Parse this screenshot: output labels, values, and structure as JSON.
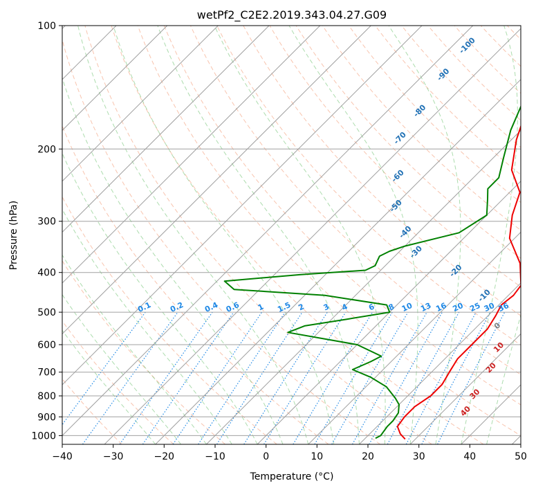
{
  "chart_data": {
    "type": "line",
    "title": "wetPf2_C2E2.2019.343.04.27.G09",
    "xlabel": "Temperature (°C)",
    "ylabel": "Pressure (hPa)",
    "xlim": [
      -40,
      50
    ],
    "ylim": [
      1050,
      100
    ],
    "y_scale": "log",
    "grid": true,
    "x_ticks": [
      -40,
      -30,
      -20,
      -10,
      0,
      10,
      20,
      30,
      40,
      50
    ],
    "y_ticks": [
      100,
      200,
      300,
      400,
      500,
      600,
      700,
      800,
      900,
      1000
    ],
    "colors": {
      "temperature": "#ee0000",
      "dewpoint": "#008000",
      "isotherm": "#a0a0a0",
      "dry_adiabat": "#f4a582",
      "moist_adiabat": "#74c476",
      "mixing_ratio": "#1e88e5",
      "theta_e_label": "#2171b5",
      "wetbulb_label": "#cc2222"
    },
    "series": [
      {
        "key": "temperature",
        "points": [
          [
            28,
            1020
          ],
          [
            26,
            990
          ],
          [
            24,
            950
          ],
          [
            23.5,
            900
          ],
          [
            23.5,
            850
          ],
          [
            24.5,
            800
          ],
          [
            24.5,
            750
          ],
          [
            23.5,
            700
          ],
          [
            22.5,
            650
          ],
          [
            22.5,
            600
          ],
          [
            22.5,
            550
          ],
          [
            21.5,
            510
          ],
          [
            20.5,
            480
          ],
          [
            21,
            455
          ],
          [
            20.5,
            430
          ],
          [
            16,
            380
          ],
          [
            9,
            330
          ],
          [
            5,
            290
          ],
          [
            2,
            255
          ],
          [
            -4,
            225
          ],
          [
            -9,
            190
          ],
          [
            -13,
            160
          ],
          [
            -16,
            140
          ],
          [
            -16.5,
            130
          ],
          [
            -16,
            120
          ],
          [
            -16,
            110
          ],
          [
            -18,
            100
          ]
        ]
      },
      {
        "key": "dewpoint",
        "points": [
          [
            22,
            1015
          ],
          [
            22.5,
            1000
          ],
          [
            22,
            950
          ],
          [
            22,
            920
          ],
          [
            21.5,
            880
          ],
          [
            20,
            840
          ],
          [
            18,
            810
          ],
          [
            14,
            760
          ],
          [
            9,
            720
          ],
          [
            4,
            690
          ],
          [
            6,
            660
          ],
          [
            7,
            640
          ],
          [
            0,
            600
          ],
          [
            -16,
            560
          ],
          [
            -14,
            540
          ],
          [
            -7,
            520
          ],
          [
            0,
            500
          ],
          [
            -2,
            480
          ],
          [
            -16,
            455
          ],
          [
            -35,
            440
          ],
          [
            -38.5,
            420
          ],
          [
            -25,
            405
          ],
          [
            -13,
            395
          ],
          [
            -12,
            385
          ],
          [
            -13,
            365
          ],
          [
            -12,
            355
          ],
          [
            -10,
            345
          ],
          [
            -2,
            320
          ],
          [
            0,
            290
          ],
          [
            -3,
            265
          ],
          [
            -5,
            250
          ],
          [
            -5,
            235
          ],
          [
            -8,
            210
          ],
          [
            -12,
            180
          ],
          [
            -15,
            155
          ],
          [
            -18,
            135
          ],
          [
            -20,
            120
          ],
          [
            -19,
            110
          ],
          [
            -20,
            100
          ]
        ]
      }
    ],
    "theta_e_labels": [
      {
        "text": "-100",
        "t": -36.5,
        "p": 113
      },
      {
        "text": "-90",
        "t": -35.5,
        "p": 133
      },
      {
        "text": "-80",
        "t": -33,
        "p": 163
      },
      {
        "text": "-70",
        "t": -31.5,
        "p": 190
      },
      {
        "text": "-60",
        "t": -24.5,
        "p": 235
      },
      {
        "text": "-50",
        "t": -19,
        "p": 278
      },
      {
        "text": "-40",
        "t": -12,
        "p": 322
      },
      {
        "text": "-30",
        "t": -6,
        "p": 360
      },
      {
        "text": "-20",
        "t": 5.5,
        "p": 400
      },
      {
        "text": "-10",
        "t": 16,
        "p": 460
      }
    ],
    "dry_adiabat_labels": [
      {
        "text": "0",
        "t": 24.5,
        "p": 545
      }
    ],
    "wetbulb_labels": [
      {
        "text": "10",
        "t": 29,
        "p": 615
      },
      {
        "text": "20",
        "t": 31.5,
        "p": 690
      },
      {
        "text": "30",
        "t": 33.5,
        "p": 800
      },
      {
        "text": "40",
        "t": 35,
        "p": 880
      }
    ],
    "mixing_ratio_labels": [
      "0.1",
      "0.2",
      "0.4",
      "0.6",
      "1",
      "1.5",
      "2",
      "3",
      "4",
      "6",
      "8",
      "10",
      "13",
      "16",
      "20",
      "25",
      "30",
      "36"
    ]
  }
}
